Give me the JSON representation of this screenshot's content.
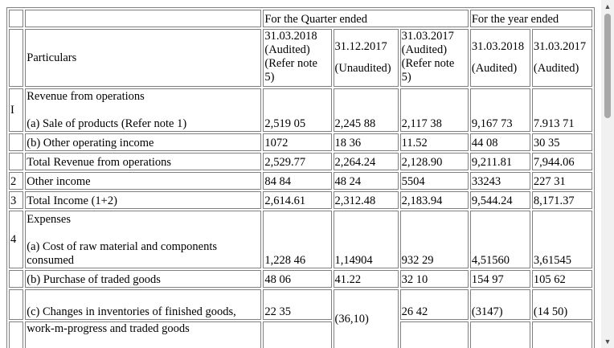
{
  "header": {
    "quarter_group": "For the Quarter ended",
    "year_group": "For the year ended",
    "particulars": "Particulars",
    "columns": [
      {
        "date": "31.03.2018",
        "line2": "(Audited)",
        "line3": "(Refer note",
        "line4": "5)"
      },
      {
        "date": "31.12.2017",
        "status": "(Unaudited)"
      },
      {
        "date": "31.03.2017",
        "line2": "(Audited)",
        "line3": "(Refer note",
        "line4": "5)"
      },
      {
        "date": "31.03.2018",
        "status": "(Audited)"
      },
      {
        "date": "31.03.2017",
        "status": "(Audited)"
      }
    ]
  },
  "sections": {
    "I": {
      "num": "I",
      "title": "Revenue from operations"
    },
    "4": {
      "num": "4",
      "title": "Expenses"
    }
  },
  "rows": {
    "sale": {
      "label": "(a) Sale of products (Refer note 1)",
      "values": [
        "2,519 05",
        "2,245 88",
        "2,117 38",
        "9,167 73",
        "7.913 71"
      ]
    },
    "other_op": {
      "label": "(b) Other operating income",
      "values": [
        "1072",
        "18 36",
        "11.52",
        "44 08",
        "30 35"
      ]
    },
    "total_rev": {
      "label": "Total Revenue from operations",
      "values": [
        "2,529.77",
        "2,264.24",
        "2,128.90",
        "9,211.81",
        "7,944.06"
      ]
    },
    "other_income": {
      "num": "2",
      "label": "Other income",
      "values": [
        "84 84",
        "48 24",
        "5504",
        "33243",
        "227 31"
      ]
    },
    "total_income": {
      "num": "3",
      "label": "Total Income (1+2)",
      "values": [
        "2,614.61",
        "2,312.48",
        "2,183.94",
        "9,544.24",
        "8,171.37"
      ]
    },
    "cost_raw": {
      "label": "(a) Cost of raw material and components consumed",
      "values": [
        "1,228 46",
        "1,14904",
        "932 29",
        "4,51560",
        "3,61545"
      ]
    },
    "purchase": {
      "label": "(b) Purchase of traded goods",
      "values": [
        "48 06",
        "41.22",
        "32 10",
        "154 97",
        "105 62"
      ]
    },
    "changes": {
      "label": "(c) Changes in inventories of finished goods,",
      "values": [
        "22 35",
        "(36,10)",
        "26 42",
        "(3147)",
        "(14 50)"
      ]
    },
    "wip": {
      "label": "work-m-progress and traded goods"
    }
  }
}
